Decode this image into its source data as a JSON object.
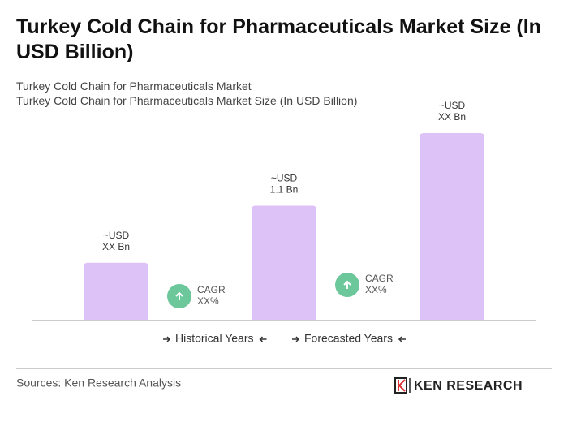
{
  "title": "Turkey Cold Chain for Pharmaceuticals Market Size (In USD Billion)",
  "subtitle_lines": [
    "Turkey Cold Chain for Pharmaceuticals Market",
    "Turkey Cold Chain for Pharmaceuticals Market Size (In USD Billion)"
  ],
  "chart_data": {
    "type": "bar",
    "categories": [
      null,
      null,
      null
    ],
    "values": [
      0.55,
      1.1,
      1.8
    ],
    "value_labels": [
      [
        "~USD",
        "XX Bn"
      ],
      [
        "~USD",
        "1.1 Bn"
      ],
      [
        "~USD",
        "XX Bn"
      ]
    ],
    "color": "#dcc2f6",
    "ylim": [
      0,
      1.8
    ],
    "annotations": [
      {
        "label": "CAGR",
        "value": "XX%"
      },
      {
        "label": "CAGR",
        "value": "XX%"
      }
    ],
    "legend": [
      "Historical Years",
      "Forecasted Years"
    ]
  },
  "sources": "Sources: Ken Research Analysis",
  "logo": "KEN RESEARCH"
}
